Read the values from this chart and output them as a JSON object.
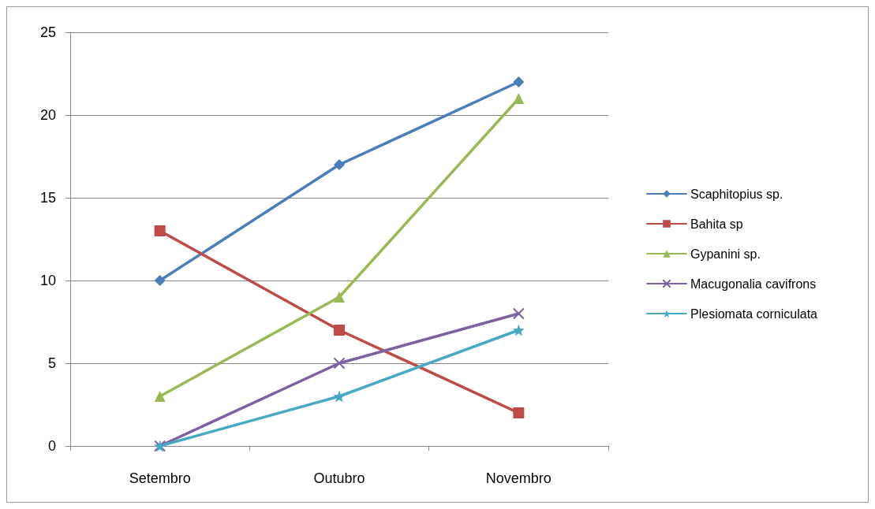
{
  "chart_data": {
    "type": "line",
    "categories": [
      "Setembro",
      "Outubro",
      "Novembro"
    ],
    "series": [
      {
        "name": "Scaphitopius sp.",
        "color": "#4a7ebb",
        "marker": "diamond",
        "values": [
          10,
          17,
          22
        ]
      },
      {
        "name": "Bahita sp",
        "color": "#be4b48",
        "marker": "square",
        "values": [
          13,
          7,
          2
        ]
      },
      {
        "name": "Gypanini sp.",
        "color": "#98b954",
        "marker": "triangle",
        "values": [
          3,
          9,
          21
        ]
      },
      {
        "name": "Macugonalia cavifrons",
        "color": "#7d60a0",
        "marker": "cross",
        "values": [
          0,
          5,
          8
        ]
      },
      {
        "name": "Plesiomata corniculata",
        "color": "#46aac5",
        "marker": "star",
        "values": [
          0,
          3,
          7
        ]
      }
    ],
    "ylim": [
      0,
      25
    ],
    "yticks": [
      0,
      5,
      10,
      15,
      20,
      25
    ],
    "grid": "y",
    "legend": "right",
    "line_style": "solid"
  }
}
